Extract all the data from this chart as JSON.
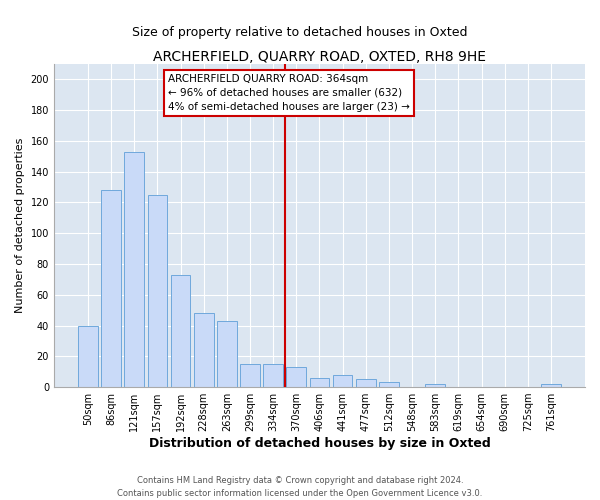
{
  "title": "ARCHERFIELD, QUARRY ROAD, OXTED, RH8 9HE",
  "subtitle": "Size of property relative to detached houses in Oxted",
  "xlabel": "Distribution of detached houses by size in Oxted",
  "ylabel": "Number of detached properties",
  "bar_labels": [
    "50sqm",
    "86sqm",
    "121sqm",
    "157sqm",
    "192sqm",
    "228sqm",
    "263sqm",
    "299sqm",
    "334sqm",
    "370sqm",
    "406sqm",
    "441sqm",
    "477sqm",
    "512sqm",
    "548sqm",
    "583sqm",
    "619sqm",
    "654sqm",
    "690sqm",
    "725sqm",
    "761sqm"
  ],
  "bar_values": [
    40,
    128,
    153,
    125,
    73,
    48,
    43,
    15,
    15,
    13,
    6,
    8,
    5,
    3,
    0,
    2,
    0,
    0,
    0,
    0,
    2
  ],
  "bar_color": "#c9daf8",
  "bar_edge_color": "#6fa8dc",
  "vline_index": 8.5,
  "vline_color": "#cc0000",
  "ylim": [
    0,
    210
  ],
  "yticks": [
    0,
    20,
    40,
    60,
    80,
    100,
    120,
    140,
    160,
    180,
    200
  ],
  "annotation_title": "ARCHERFIELD QUARRY ROAD: 364sqm",
  "annotation_line1": "← 96% of detached houses are smaller (632)",
  "annotation_line2": "4% of semi-detached houses are larger (23) →",
  "footer1": "Contains HM Land Registry data © Crown copyright and database right 2024.",
  "footer2": "Contains public sector information licensed under the Open Government Licence v3.0.",
  "fig_bg_color": "#ffffff",
  "plot_bg_color": "#dce6f1",
  "grid_color": "#ffffff",
  "title_fontsize": 10,
  "subtitle_fontsize": 9,
  "ylabel_fontsize": 8,
  "xlabel_fontsize": 9
}
